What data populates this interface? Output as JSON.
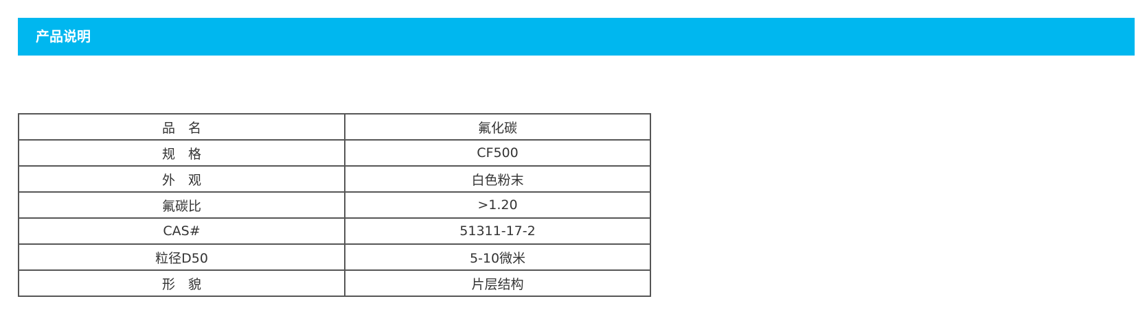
{
  "header": {
    "title": "产品说明",
    "color": "#00b7ef"
  },
  "spec_table": {
    "rows": [
      {
        "label": "品　名",
        "value": "氟化碳"
      },
      {
        "label": "规　格",
        "value": "CF500"
      },
      {
        "label": "外　观",
        "value": "白色粉末"
      },
      {
        "label": "氟碳比",
        "value": ">1.20"
      },
      {
        "label": "CAS#",
        "value": "51311-17-2"
      },
      {
        "label": "粒径D50",
        "value": "5-10微米"
      },
      {
        "label": "形　貌",
        "value": "片层结构"
      }
    ]
  }
}
